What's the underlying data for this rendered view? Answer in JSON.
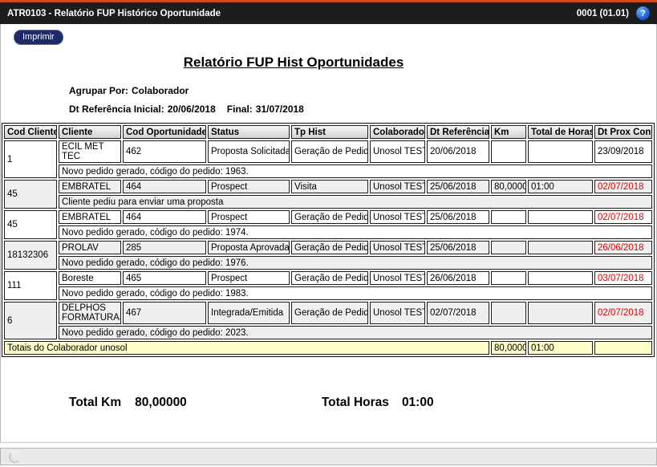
{
  "titlebar": {
    "title": "ATR0103 - Relatório FUP Histórico Oportunidade",
    "version": "0001 (01.01)",
    "help_glyph": "?"
  },
  "toolbar": {
    "print_label": "Imprimir"
  },
  "report": {
    "title": "Relatório FUP Hist Oportunidades",
    "group_by_label": "Agrupar Por:",
    "group_by_value": "Colaborador",
    "date_range_label": "Dt Referência Inicial:",
    "date_initial": "20/06/2018",
    "final_label": "Final:",
    "date_final": "31/07/2018"
  },
  "table": {
    "columns": [
      "Cod Cliente",
      "Cliente",
      "Cod Oportunidade",
      "Status",
      "Tp Hist",
      "Colaborador",
      "Dt Referência",
      "Km",
      "Total de Horas",
      "Dt Prox Cont"
    ],
    "rows": [
      {
        "cod_cliente": "1",
        "cliente": "ECIL MET TEC",
        "cod_oportunidade": "462",
        "status": "Proposta Solicitada",
        "tp_hist": "Geração de Pedido",
        "colaborador": "Unosol TESTE",
        "dt_referencia": "20/06/2018",
        "km": "",
        "total_horas": "",
        "dt_prox_cont": "23/09/2018",
        "dt_prox_overdue": false,
        "obs": "Novo pedido gerado, código do pedido: 1963."
      },
      {
        "cod_cliente": "45",
        "cliente": "EMBRATEL",
        "cod_oportunidade": "464",
        "status": "Prospect",
        "tp_hist": "Visita",
        "colaborador": "Unosol TESTE",
        "dt_referencia": "25/06/2018",
        "km": "80,0000",
        "total_horas": "01:00",
        "dt_prox_cont": "02/07/2018",
        "dt_prox_overdue": true,
        "obs": "Cliente pediu para enviar uma proposta"
      },
      {
        "cod_cliente": "45",
        "cliente": "EMBRATEL",
        "cod_oportunidade": "464",
        "status": "Prospect",
        "tp_hist": "Geração de Pedido",
        "colaborador": "Unosol TESTE",
        "dt_referencia": "25/06/2018",
        "km": "",
        "total_horas": "",
        "dt_prox_cont": "02/07/2018",
        "dt_prox_overdue": true,
        "obs": "Novo pedido gerado, código do pedido: 1974."
      },
      {
        "cod_cliente": "18132306",
        "cliente": "PROLAV",
        "cod_oportunidade": "285",
        "status": "Proposta Aprovada",
        "tp_hist": "Geração de Pedido",
        "colaborador": "Unosol TESTE",
        "dt_referencia": "25/06/2018",
        "km": "",
        "total_horas": "",
        "dt_prox_cont": "26/06/2018",
        "dt_prox_overdue": true,
        "obs": "Novo pedido gerado, código do pedido: 1976."
      },
      {
        "cod_cliente": "111",
        "cliente": "Boreste",
        "cod_oportunidade": "465",
        "status": "Prospect",
        "tp_hist": "Geração de Pedido",
        "colaborador": "Unosol TESTE",
        "dt_referencia": "26/06/2018",
        "km": "",
        "total_horas": "",
        "dt_prox_cont": "03/07/2018",
        "dt_prox_overdue": true,
        "obs": "Novo pedido gerado, código do pedido: 1983."
      },
      {
        "cod_cliente": "6",
        "cliente": "DELPHOS FORMATURAS",
        "cod_oportunidade": "467",
        "status": "Integrada/Emitida",
        "tp_hist": "Geração de Pedido",
        "colaborador": "Unosol TESTE",
        "dt_referencia": "02/07/2018",
        "km": "",
        "total_horas": "",
        "dt_prox_cont": "02/07/2018",
        "dt_prox_overdue": true,
        "obs": "Novo pedido gerado, código do pedido: 2023."
      }
    ],
    "totals_row": {
      "label": "Totais do Colaborador unosol",
      "km": "80,0000",
      "total_horas": "01:00",
      "dt_prox_cont": ""
    }
  },
  "summary": {
    "total_km_label": "Total Km",
    "total_km_value": "80,00000",
    "total_horas_label": "Total Horas",
    "total_horas_value": "01:00"
  },
  "colors": {
    "topbar_accent": "#d0491b",
    "titlebar_bg": "#1d1d1d",
    "print_button_bg": "#1d2a66",
    "overdue_date": "#e00000",
    "totals_row_bg": "#ffffcc",
    "alt_row_bg": "#efefef"
  }
}
